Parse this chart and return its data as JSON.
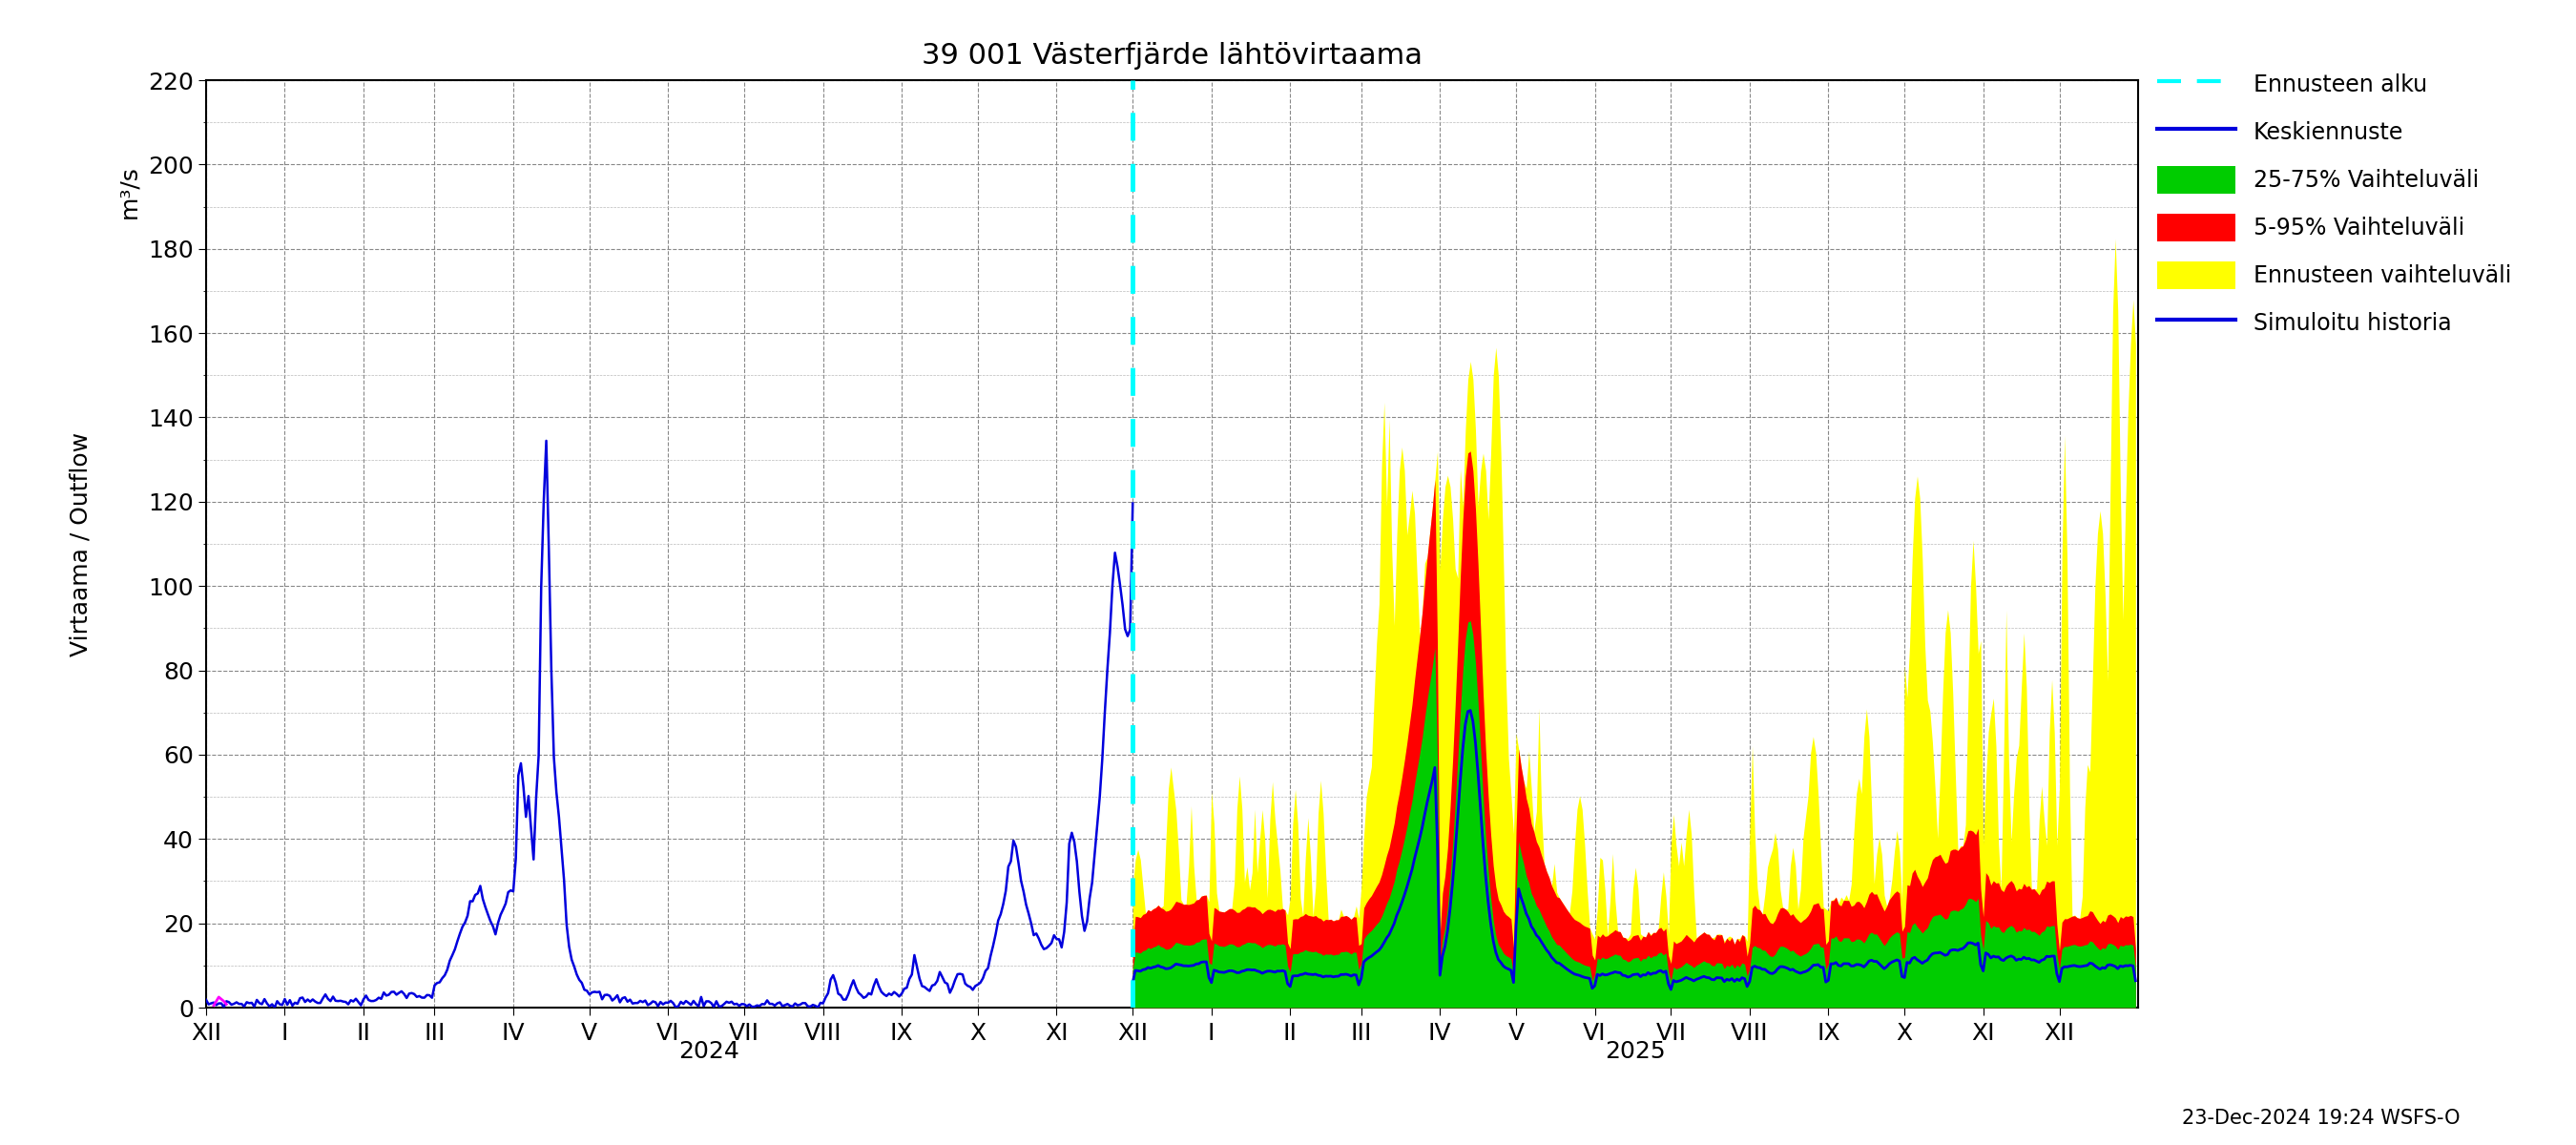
{
  "title": "39 001 Västerfjärde lähtövirtaama",
  "ylabel_left": "Virtaama / Outflow",
  "ylabel_right": "m³/s",
  "ylim": [
    0,
    220
  ],
  "yticks": [
    0,
    20,
    40,
    60,
    80,
    100,
    120,
    140,
    160,
    180,
    200,
    220
  ],
  "background_color": "#ffffff",
  "grid_color": "#aaaaaa",
  "cyan_color": "#00ffff",
  "history_color": "#0000dd",
  "median_color": "#0000dd",
  "green_color": "#00cc00",
  "red_color": "#ff0000",
  "yellow_color": "#ffff00",
  "magenta_color": "#ff00ff",
  "legend_labels": [
    "Ennusteen alku",
    "Keskiennuste",
    "25-75% Vaihteluväli",
    "5-95% Vaihteluväli",
    "Ennusteen vaihteluväli",
    "Simuloitu historia"
  ],
  "footer_text": "23-Dec-2024 19:24 WSFS-O",
  "x_month_labels": [
    "XII",
    "I",
    "II",
    "III",
    "IV",
    "V",
    "VI",
    "VII",
    "VIII",
    "IX",
    "X",
    "XI",
    "XII",
    "I",
    "II",
    "III",
    "IV",
    "V",
    "VI",
    "VII",
    "VIII",
    "IX",
    "X",
    "XI",
    "XII"
  ],
  "days_per_month": [
    31,
    31,
    28,
    31,
    30,
    31,
    30,
    31,
    31,
    30,
    31,
    30,
    31,
    31,
    28,
    31,
    30,
    31,
    30,
    31,
    31,
    30,
    31,
    30,
    31
  ],
  "forecast_month_index": 12
}
